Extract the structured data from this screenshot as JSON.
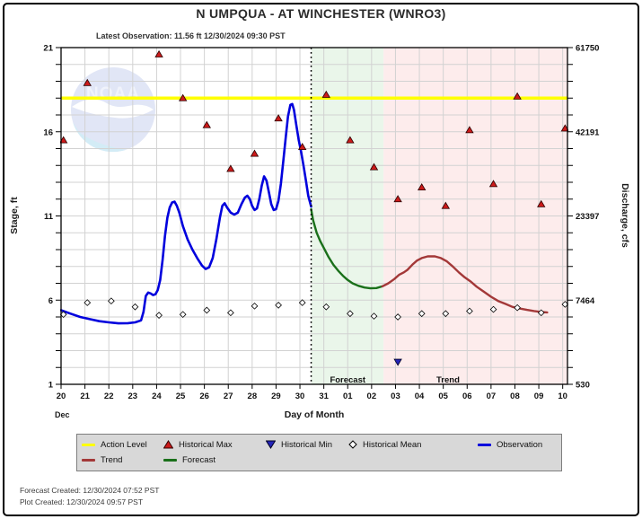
{
  "header": {
    "title": "N UMPQUA - AT WINCHESTER  (WNRO3)",
    "latest_observation": "Latest Observation: 11.56 ft 12/30/2024 09:30 PST"
  },
  "footer": {
    "forecast_created": "Forecast Created: 12/30/2024 07:52 PST",
    "plot_created": "Plot Created: 12/30/2024 09:57 PST"
  },
  "legend": {
    "items": [
      {
        "label": "Action Level",
        "swatch": "line",
        "color_key": "action_level"
      },
      {
        "label": "Historical Max",
        "swatch": "triangle-up",
        "color_key": "historical_max"
      },
      {
        "label": "Historical Min",
        "swatch": "triangle-down",
        "color_key": "historical_min"
      },
      {
        "label": "Historical Mean",
        "swatch": "diamond",
        "color_key": "historical_mean_fill"
      },
      {
        "label": "Observation",
        "swatch": "line",
        "color_key": "observation"
      },
      {
        "label": "Trend",
        "swatch": "line",
        "color_key": "trend"
      },
      {
        "label": "Forecast",
        "swatch": "line",
        "color_key": "forecast"
      }
    ]
  },
  "colors": {
    "action_level": "#ffff00",
    "observation": "#0000dd",
    "forecast": "#1a701a",
    "trend": "#a33838",
    "historical_max": "#cc1a1a",
    "historical_min": "#2424b8",
    "historical_mean_fill": "#ffffff",
    "band_forecast": "#eaf6ea",
    "band_trend": "#fdecec",
    "grid": "#d2d2d2"
  },
  "chart_data": {
    "type": "line",
    "title": "N UMPQUA - AT WINCHESTER  (WNRO3)",
    "x_axis": {
      "label": "Day of Month",
      "month_label": "Dec",
      "tick_labels": [
        "20",
        "21",
        "22",
        "23",
        "24",
        "25",
        "26",
        "27",
        "28",
        "29",
        "30",
        "31",
        "01",
        "02",
        "03",
        "04",
        "05",
        "06",
        "07",
        "08",
        "09",
        "10"
      ],
      "range": [
        0,
        21.2
      ]
    },
    "y_axis_left": {
      "label": "Stage, ft",
      "range": [
        1,
        21
      ],
      "major_ticks": [
        1,
        6,
        11,
        16,
        21
      ],
      "minor_step": 1
    },
    "y_axis_right": {
      "label": "Discharge, cfs",
      "tick_labels": [
        "530",
        "7464",
        "23397",
        "42191",
        "61750"
      ]
    },
    "action_level_stage": 18.0,
    "latest_obs_day": 10.47,
    "latest_obs_stage": 11.56,
    "regions": {
      "forecast": {
        "start": 10.47,
        "end": 13.5,
        "label": "Forecast",
        "label_day": 12.0
      },
      "trend": {
        "start": 13.5,
        "end": 21.2,
        "label": "Trend",
        "label_day": 16.2
      }
    },
    "series": [
      {
        "name": "Observation",
        "type": "line",
        "color_key": "observation",
        "stroke_width": 2.6,
        "points": [
          [
            0,
            5.4
          ],
          [
            0.4,
            5.2
          ],
          [
            0.8,
            5.0
          ],
          [
            1.2,
            4.87
          ],
          [
            1.6,
            4.75
          ],
          [
            2.0,
            4.68
          ],
          [
            2.4,
            4.62
          ],
          [
            2.8,
            4.63
          ],
          [
            3.1,
            4.68
          ],
          [
            3.35,
            4.8
          ],
          [
            3.45,
            5.3
          ],
          [
            3.55,
            6.25
          ],
          [
            3.65,
            6.45
          ],
          [
            3.75,
            6.4
          ],
          [
            3.85,
            6.3
          ],
          [
            3.95,
            6.35
          ],
          [
            4.05,
            6.6
          ],
          [
            4.15,
            7.2
          ],
          [
            4.25,
            8.4
          ],
          [
            4.35,
            9.8
          ],
          [
            4.45,
            10.9
          ],
          [
            4.55,
            11.5
          ],
          [
            4.65,
            11.8
          ],
          [
            4.75,
            11.85
          ],
          [
            4.85,
            11.6
          ],
          [
            4.95,
            11.2
          ],
          [
            5.1,
            10.4
          ],
          [
            5.3,
            9.6
          ],
          [
            5.5,
            9.0
          ],
          [
            5.7,
            8.5
          ],
          [
            5.9,
            8.05
          ],
          [
            6.05,
            7.85
          ],
          [
            6.2,
            7.95
          ],
          [
            6.35,
            8.5
          ],
          [
            6.5,
            9.6
          ],
          [
            6.65,
            10.9
          ],
          [
            6.75,
            11.6
          ],
          [
            6.85,
            11.75
          ],
          [
            6.95,
            11.5
          ],
          [
            7.1,
            11.2
          ],
          [
            7.25,
            11.08
          ],
          [
            7.4,
            11.2
          ],
          [
            7.55,
            11.7
          ],
          [
            7.7,
            12.1
          ],
          [
            7.8,
            12.2
          ],
          [
            7.9,
            12.0
          ],
          [
            8.0,
            11.6
          ],
          [
            8.1,
            11.35
          ],
          [
            8.2,
            11.45
          ],
          [
            8.3,
            12.0
          ],
          [
            8.4,
            12.8
          ],
          [
            8.5,
            13.35
          ],
          [
            8.6,
            13.1
          ],
          [
            8.7,
            12.4
          ],
          [
            8.8,
            11.7
          ],
          [
            8.9,
            11.35
          ],
          [
            9.0,
            11.4
          ],
          [
            9.1,
            11.9
          ],
          [
            9.2,
            12.9
          ],
          [
            9.3,
            14.2
          ],
          [
            9.4,
            15.6
          ],
          [
            9.5,
            16.9
          ],
          [
            9.6,
            17.6
          ],
          [
            9.68,
            17.65
          ],
          [
            9.75,
            17.3
          ],
          [
            9.85,
            16.4
          ],
          [
            9.95,
            15.5
          ],
          [
            10.05,
            14.8
          ],
          [
            10.15,
            14.0
          ],
          [
            10.25,
            13.1
          ],
          [
            10.35,
            12.2
          ],
          [
            10.47,
            11.56
          ]
        ]
      },
      {
        "name": "Forecast",
        "type": "line",
        "color_key": "forecast",
        "stroke_width": 2.4,
        "points": [
          [
            10.47,
            11.4
          ],
          [
            10.55,
            10.75
          ],
          [
            10.7,
            10.0
          ],
          [
            10.85,
            9.5
          ],
          [
            11.0,
            9.1
          ],
          [
            11.2,
            8.55
          ],
          [
            11.4,
            8.1
          ],
          [
            11.6,
            7.75
          ],
          [
            11.8,
            7.45
          ],
          [
            12.0,
            7.2
          ],
          [
            12.2,
            7.0
          ],
          [
            12.45,
            6.85
          ],
          [
            12.7,
            6.75
          ],
          [
            12.95,
            6.7
          ],
          [
            13.2,
            6.72
          ],
          [
            13.45,
            6.82
          ]
        ]
      },
      {
        "name": "Trend",
        "type": "line",
        "color_key": "trend",
        "stroke_width": 2.4,
        "points": [
          [
            13.45,
            6.82
          ],
          [
            13.7,
            7.0
          ],
          [
            13.95,
            7.25
          ],
          [
            14.15,
            7.5
          ],
          [
            14.35,
            7.65
          ],
          [
            14.5,
            7.8
          ],
          [
            14.7,
            8.1
          ],
          [
            14.9,
            8.35
          ],
          [
            15.1,
            8.5
          ],
          [
            15.35,
            8.6
          ],
          [
            15.65,
            8.6
          ],
          [
            15.9,
            8.5
          ],
          [
            16.15,
            8.3
          ],
          [
            16.4,
            8.0
          ],
          [
            16.65,
            7.65
          ],
          [
            16.9,
            7.35
          ],
          [
            17.15,
            7.1
          ],
          [
            17.4,
            6.8
          ],
          [
            17.7,
            6.5
          ],
          [
            18.0,
            6.2
          ],
          [
            18.3,
            5.95
          ],
          [
            18.6,
            5.78
          ],
          [
            18.9,
            5.6
          ],
          [
            19.2,
            5.5
          ],
          [
            19.5,
            5.42
          ],
          [
            19.8,
            5.35
          ],
          [
            20.1,
            5.3
          ],
          [
            20.35,
            5.27
          ]
        ]
      },
      {
        "name": "Historical Max",
        "type": "markers",
        "marker": "triangle-up",
        "color_key": "historical_max",
        "points": [
          [
            0.1,
            15.5
          ],
          [
            1.1,
            18.9
          ],
          [
            4.1,
            20.6
          ],
          [
            5.1,
            18.0
          ],
          [
            6.1,
            16.4
          ],
          [
            7.1,
            13.8
          ],
          [
            8.1,
            14.7
          ],
          [
            9.1,
            16.8
          ],
          [
            10.1,
            15.1
          ],
          [
            11.1,
            18.2
          ],
          [
            12.1,
            15.5
          ],
          [
            13.1,
            13.9
          ],
          [
            14.1,
            12.0
          ],
          [
            15.1,
            12.7
          ],
          [
            16.1,
            11.6
          ],
          [
            17.1,
            16.1
          ],
          [
            18.1,
            12.9
          ],
          [
            19.1,
            18.1
          ],
          [
            20.1,
            11.7
          ],
          [
            21.1,
            16.2
          ]
        ]
      },
      {
        "name": "Historical Min",
        "type": "markers",
        "marker": "triangle-down",
        "color_key": "historical_min",
        "points": [
          [
            14.1,
            2.33
          ]
        ]
      },
      {
        "name": "Historical Mean",
        "type": "markers",
        "marker": "diamond",
        "color_key": "historical_mean_fill",
        "points": [
          [
            0.1,
            5.15
          ],
          [
            1.1,
            5.85
          ],
          [
            2.1,
            5.95
          ],
          [
            3.1,
            5.6
          ],
          [
            4.1,
            5.1
          ],
          [
            5.1,
            5.15
          ],
          [
            6.1,
            5.4
          ],
          [
            7.1,
            5.25
          ],
          [
            8.1,
            5.65
          ],
          [
            9.1,
            5.7
          ],
          [
            10.1,
            5.85
          ],
          [
            11.1,
            5.6
          ],
          [
            12.1,
            5.2
          ],
          [
            13.1,
            5.05
          ],
          [
            14.1,
            5.0
          ],
          [
            15.1,
            5.2
          ],
          [
            16.1,
            5.2
          ],
          [
            17.1,
            5.35
          ],
          [
            18.1,
            5.45
          ],
          [
            19.1,
            5.55
          ],
          [
            20.1,
            5.25
          ],
          [
            21.1,
            5.75
          ]
        ]
      }
    ]
  }
}
